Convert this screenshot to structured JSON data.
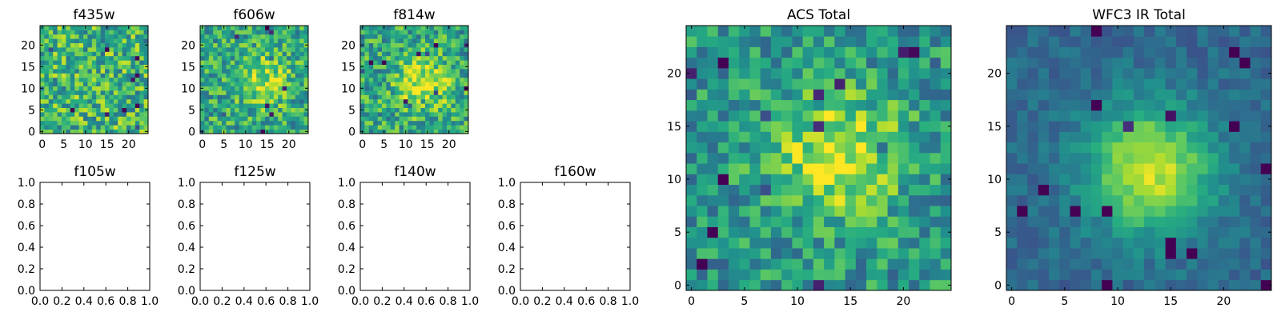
{
  "chart_data": [
    {
      "type": "heatmap",
      "title": "f435w",
      "grid": false,
      "colormap": "viridis",
      "size": 25,
      "xlim": [
        -0.5,
        24.5
      ],
      "ylim": [
        -0.5,
        24.5
      ],
      "xticks": [
        0,
        5,
        10,
        15,
        20
      ],
      "yticks": [
        0,
        5,
        10,
        15,
        20
      ],
      "intensity": {
        "center": [
          14,
          13
        ],
        "peak": 0.0,
        "noise": 0.55,
        "base": 0.66
      }
    },
    {
      "type": "heatmap",
      "title": "f606w",
      "grid": false,
      "colormap": "viridis",
      "size": 25,
      "xlim": [
        -0.5,
        24.5
      ],
      "ylim": [
        -0.5,
        24.5
      ],
      "xticks": [
        0,
        5,
        10,
        15,
        20
      ],
      "yticks": [
        0,
        5,
        10,
        15,
        20
      ],
      "intensity": {
        "center": [
          14,
          12
        ],
        "peak": 0.3,
        "noise": 0.5,
        "base": 0.6
      }
    },
    {
      "type": "heatmap",
      "title": "f814w",
      "grid": false,
      "colormap": "viridis",
      "size": 25,
      "xlim": [
        -0.5,
        24.5
      ],
      "ylim": [
        -0.5,
        24.5
      ],
      "xticks": [
        0,
        5,
        10,
        15,
        20
      ],
      "yticks": [
        0,
        5,
        10,
        15,
        20
      ],
      "intensity": {
        "center": [
          14,
          11
        ],
        "peak": 0.35,
        "noise": 0.5,
        "base": 0.6
      }
    },
    {
      "type": "empty",
      "title": "f105w",
      "xlim": [
        0.0,
        1.0
      ],
      "ylim": [
        0.0,
        1.0
      ],
      "xticks": [
        "0.0",
        "0.2",
        "0.4",
        "0.6",
        "0.8",
        "1.0"
      ],
      "yticks": [
        "0.0",
        "0.2",
        "0.4",
        "0.6",
        "0.8",
        "1.0"
      ]
    },
    {
      "type": "empty",
      "title": "f125w",
      "xlim": [
        0.0,
        1.0
      ],
      "ylim": [
        0.0,
        1.0
      ],
      "xticks": [
        "0.0",
        "0.2",
        "0.4",
        "0.6",
        "0.8",
        "1.0"
      ],
      "yticks": [
        "0.0",
        "0.2",
        "0.4",
        "0.6",
        "0.8",
        "1.0"
      ]
    },
    {
      "type": "empty",
      "title": "f140w",
      "xlim": [
        0.0,
        1.0
      ],
      "ylim": [
        0.0,
        1.0
      ],
      "xticks": [
        "0.0",
        "0.2",
        "0.4",
        "0.6",
        "0.8",
        "1.0"
      ],
      "yticks": [
        "0.0",
        "0.2",
        "0.4",
        "0.6",
        "0.8",
        "1.0"
      ]
    },
    {
      "type": "empty",
      "title": "f160w",
      "xlim": [
        0.0,
        1.0
      ],
      "ylim": [
        0.0,
        1.0
      ],
      "xticks": [
        "0.0",
        "0.2",
        "0.4",
        "0.6",
        "0.8",
        "1.0"
      ],
      "yticks": [
        "0.0",
        "0.2",
        "0.4",
        "0.6",
        "0.8",
        "1.0"
      ]
    },
    {
      "type": "heatmap",
      "title": "ACS Total",
      "grid": false,
      "colormap": "viridis",
      "size": 25,
      "xlim": [
        -0.5,
        24.5
      ],
      "ylim": [
        -0.5,
        24.5
      ],
      "xticks": [
        0,
        5,
        10,
        15,
        20
      ],
      "yticks": [
        0,
        5,
        10,
        15,
        20
      ],
      "intensity": {
        "center": [
          14,
          12
        ],
        "peak": 0.45,
        "noise": 0.45,
        "base": 0.52
      }
    },
    {
      "type": "heatmap",
      "title": "WFC3 IR Total",
      "grid": false,
      "colormap": "viridis",
      "size": 25,
      "xlim": [
        -0.5,
        24.5
      ],
      "ylim": [
        -0.5,
        24.5
      ],
      "xticks": [
        0,
        5,
        10,
        15,
        20
      ],
      "yticks": [
        0,
        5,
        10,
        15,
        20
      ],
      "intensity": {
        "center": [
          13,
          11
        ],
        "peak": 0.6,
        "noise": 0.18,
        "base": 0.34
      }
    }
  ]
}
